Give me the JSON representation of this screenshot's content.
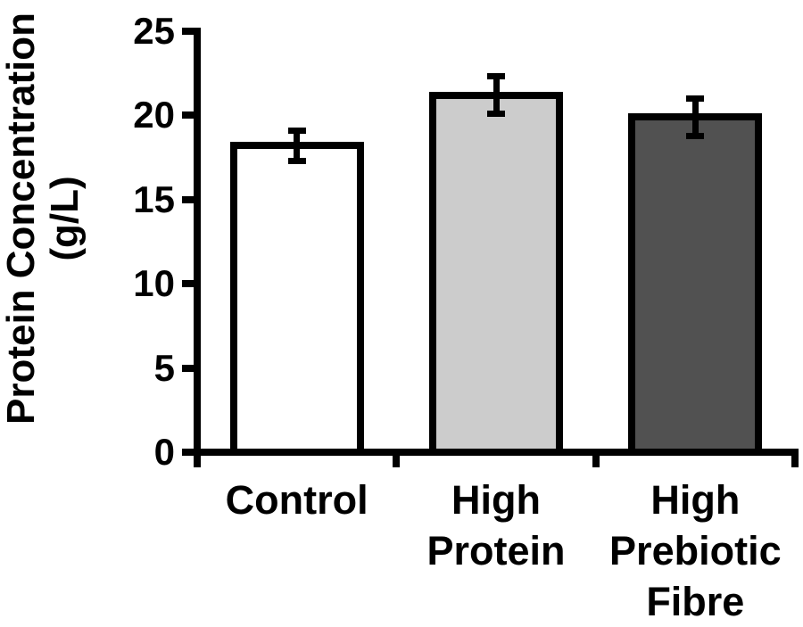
{
  "chart_data": {
    "type": "bar",
    "title": "",
    "categories": [
      "Control",
      "High\nProtein",
      "High\nPrebiotic\nFibre"
    ],
    "values": [
      18.2,
      21.2,
      19.9
    ],
    "error_bars": [
      0.9,
      1.1,
      1.1
    ],
    "bar_fill_colors": [
      "#ffffff",
      "#cccccc",
      "#515151"
    ],
    "bar_edge_color": "#000000",
    "error_bar_color": "#000000",
    "axis_color": "#000000",
    "background_color": "#ffffff",
    "xlabel": "",
    "ylabel": "Protein Concentration\n(g/L)",
    "ylim": [
      0,
      25
    ],
    "yticks": [
      0,
      5,
      10,
      15,
      20,
      25
    ],
    "grid": false,
    "legend": false
  }
}
